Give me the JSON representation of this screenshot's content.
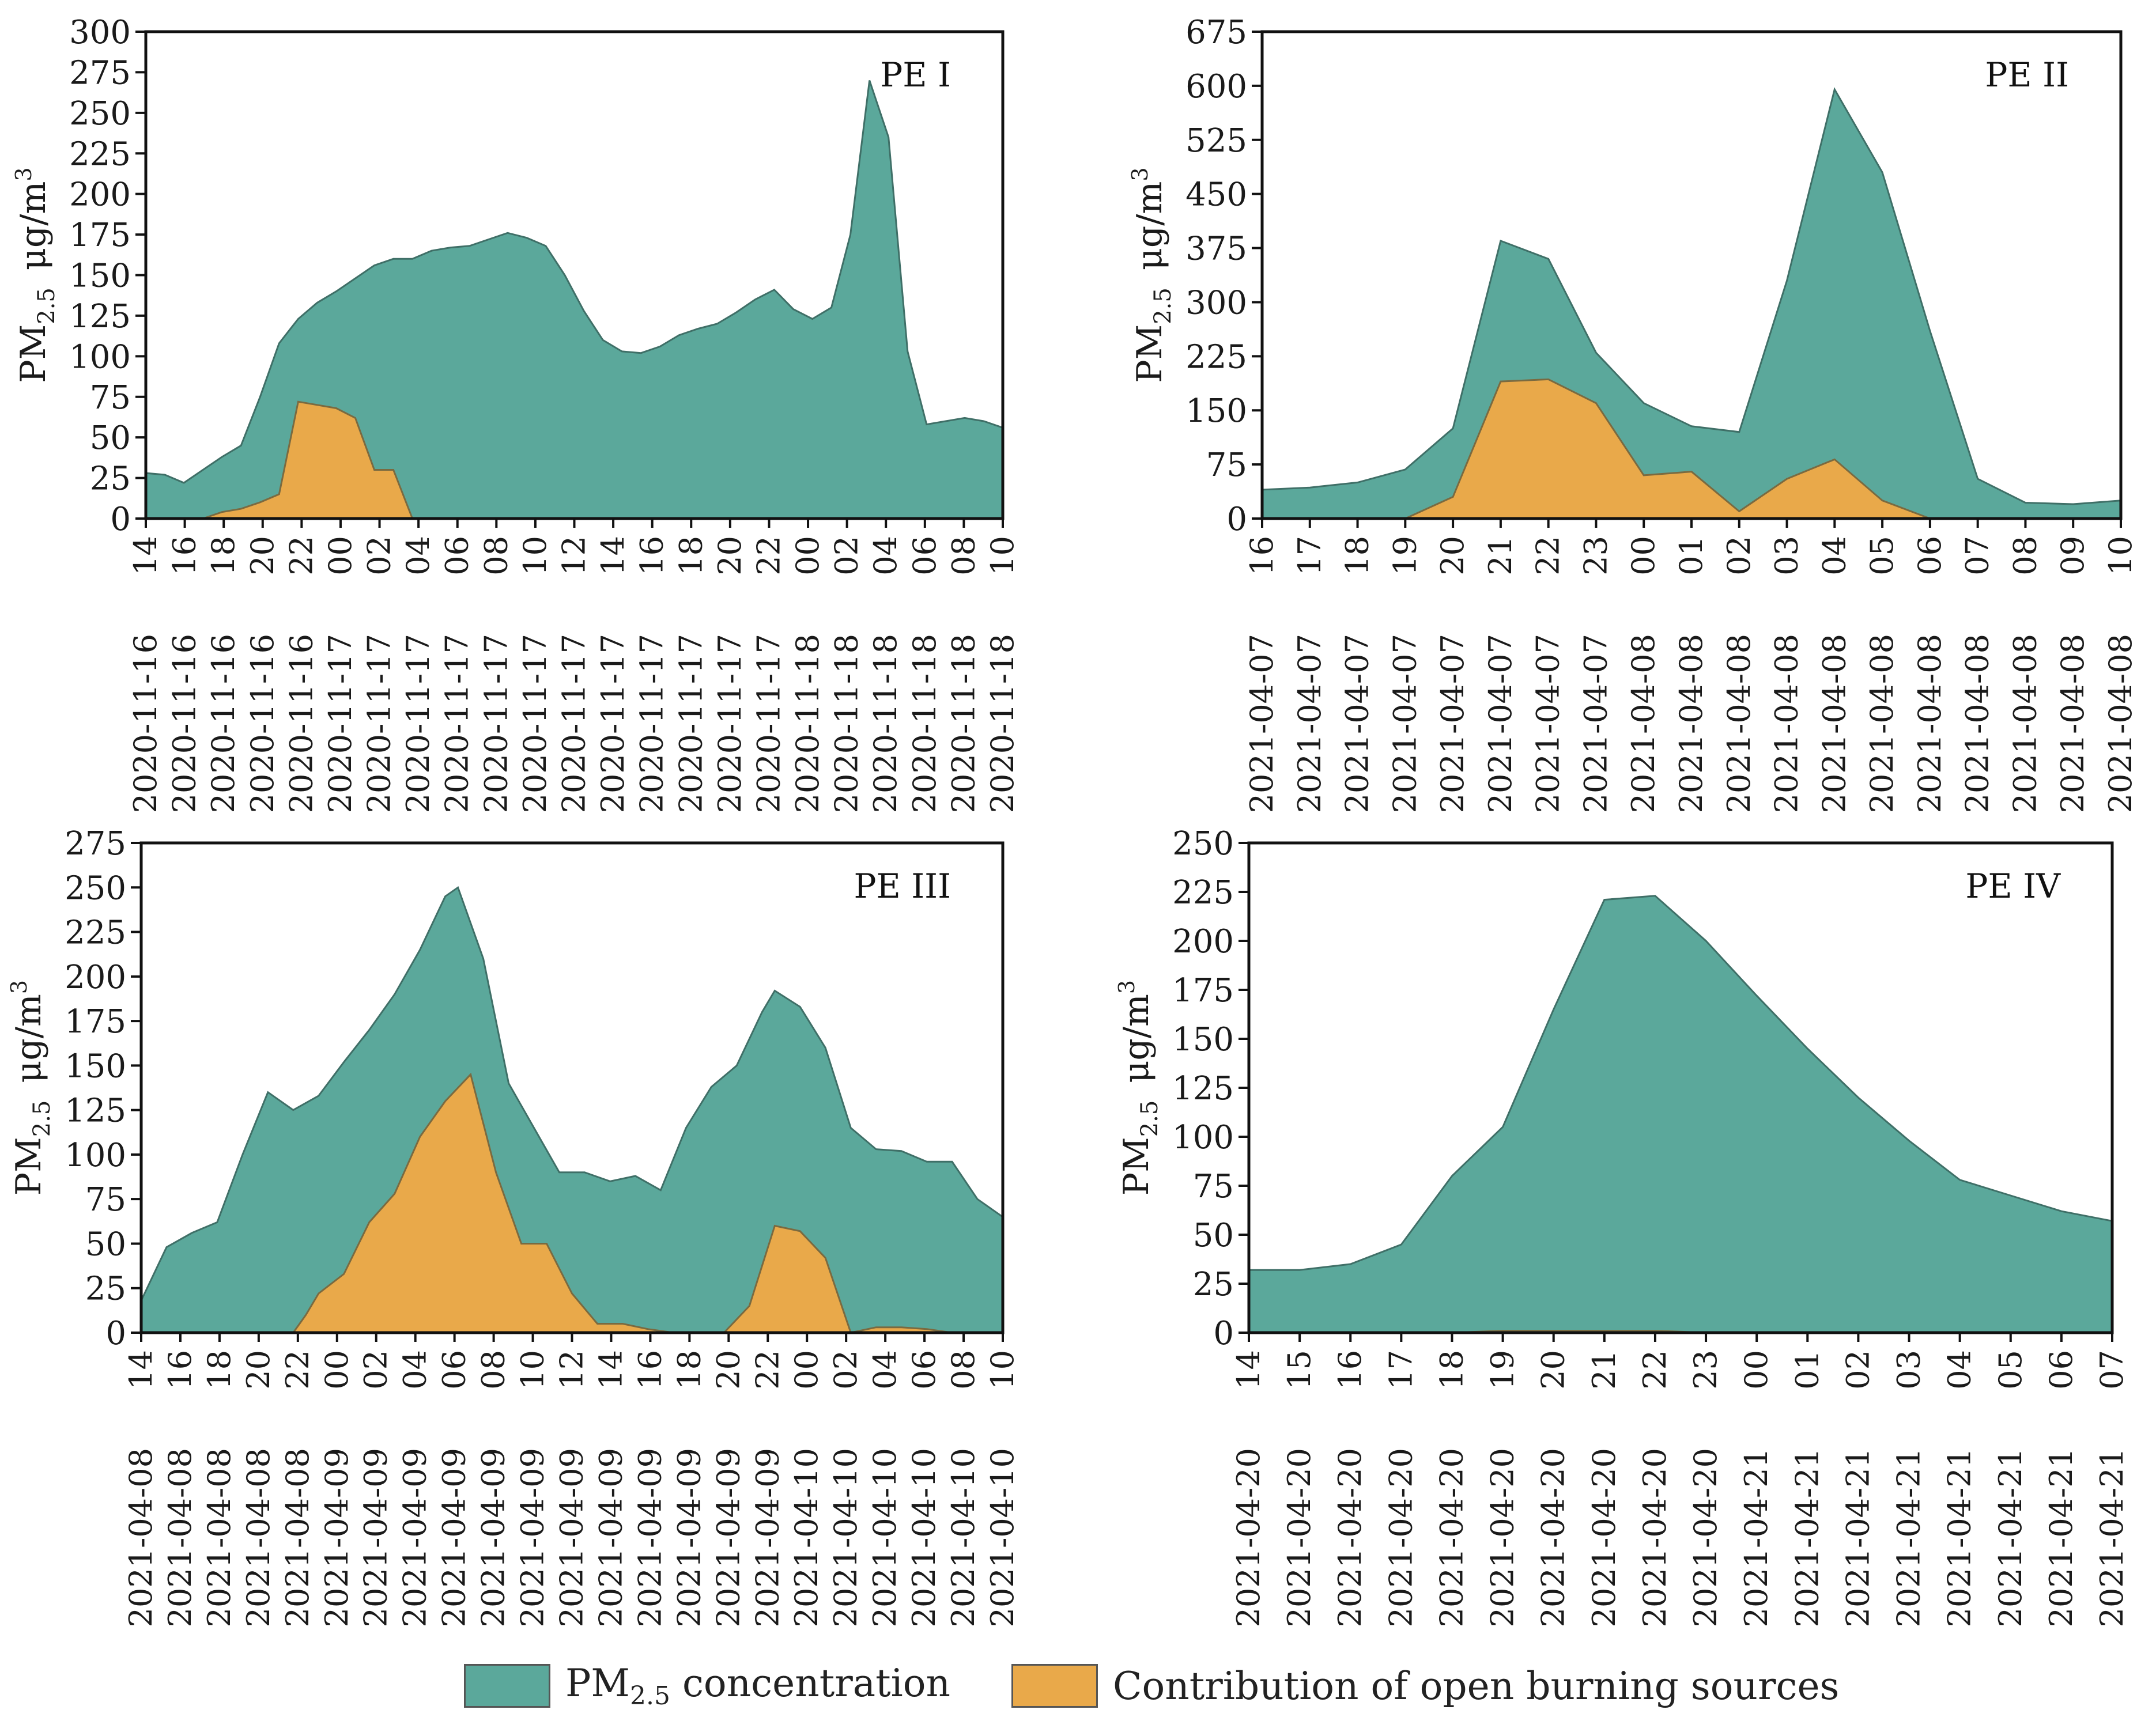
{
  "colors": {
    "pm25": "#5ba89b",
    "burning": "#e9a94a",
    "frame": "#111111",
    "outline": "#3f6f67"
  },
  "legend": {
    "pm25_main": "PM",
    "pm25_sub": "2.5",
    "pm25_rest": " concentration",
    "burning": "Contribution of open burning sources"
  },
  "charts": [
    {
      "label": "PE I",
      "ylabel_main": "PM",
      "ylabel_sub": "2.5",
      "ylabel_unit": "μg/m",
      "ylabel_sup": "3",
      "ylim": [
        0,
        300
      ],
      "yticks": [
        0,
        25,
        50,
        75,
        100,
        125,
        150,
        175,
        200,
        225,
        250,
        275,
        300
      ],
      "x_points": 57,
      "tick_hours": [
        "14",
        "16",
        "18",
        "20",
        "22",
        "00",
        "02",
        "04",
        "06",
        "08",
        "10",
        "12",
        "14",
        "16",
        "18",
        "20",
        "22",
        "00",
        "02",
        "04",
        "06",
        "08",
        "10"
      ],
      "tick_dates": [
        "2020-11-16",
        "2020-11-16",
        "2020-11-16",
        "2020-11-16",
        "2020-11-16",
        "2020-11-17",
        "2020-11-17",
        "2020-11-17",
        "2020-11-17",
        "2020-11-17",
        "2020-11-17",
        "2020-11-17",
        "2020-11-17",
        "2020-11-17",
        "2020-11-17",
        "2020-11-17",
        "2020-11-17",
        "2020-11-18",
        "2020-11-18",
        "2020-11-18",
        "2020-11-18",
        "2020-11-18",
        "2020-11-18"
      ],
      "pm25": [
        [
          0,
          28
        ],
        [
          2,
          27
        ],
        [
          4,
          22
        ],
        [
          6,
          30
        ],
        [
          8,
          38
        ],
        [
          10,
          45
        ],
        [
          12,
          75
        ],
        [
          14,
          108
        ],
        [
          16,
          123
        ],
        [
          18,
          133
        ],
        [
          20,
          140
        ],
        [
          22,
          148
        ],
        [
          24,
          156
        ],
        [
          26,
          160
        ],
        [
          28,
          160
        ],
        [
          30,
          165
        ],
        [
          32,
          167
        ],
        [
          34,
          168
        ],
        [
          36,
          172
        ],
        [
          38,
          176
        ],
        [
          40,
          173
        ],
        [
          42,
          168
        ],
        [
          44,
          150
        ],
        [
          46,
          128
        ],
        [
          48,
          110
        ],
        [
          50,
          103
        ],
        [
          52,
          102
        ],
        [
          54,
          106
        ],
        [
          56,
          113
        ],
        [
          58,
          117
        ],
        [
          60,
          120
        ],
        [
          62,
          127
        ],
        [
          64,
          135
        ],
        [
          66,
          141
        ],
        [
          68,
          129
        ],
        [
          70,
          123
        ],
        [
          72,
          130
        ],
        [
          74,
          175
        ],
        [
          76,
          270
        ],
        [
          78,
          235
        ],
        [
          80,
          103
        ],
        [
          82,
          58
        ],
        [
          84,
          60
        ],
        [
          86,
          62
        ],
        [
          88,
          60
        ],
        [
          90,
          56
        ]
      ],
      "burning": [
        [
          6,
          0
        ],
        [
          8,
          4
        ],
        [
          10,
          6
        ],
        [
          12,
          10
        ],
        [
          14,
          15
        ],
        [
          16,
          72
        ],
        [
          18,
          70
        ],
        [
          20,
          68
        ],
        [
          22,
          62
        ],
        [
          24,
          30
        ],
        [
          26,
          30
        ],
        [
          28,
          0
        ]
      ],
      "xmax": 90
    },
    {
      "label": "PE II",
      "ylabel_main": "PM",
      "ylabel_sub": "2.5",
      "ylabel_unit": "μg/m",
      "ylabel_sup": "3",
      "ylim": [
        0,
        675
      ],
      "yticks": [
        0,
        75,
        150,
        225,
        300,
        375,
        450,
        525,
        600,
        675
      ],
      "tick_hours": [
        "16",
        "17",
        "18",
        "19",
        "20",
        "21",
        "22",
        "23",
        "00",
        "01",
        "02",
        "03",
        "04",
        "05",
        "06",
        "07",
        "08",
        "09",
        "10"
      ],
      "tick_dates": [
        "2021-04-07",
        "2021-04-07",
        "2021-04-07",
        "2021-04-07",
        "2021-04-07",
        "2021-04-07",
        "2021-04-07",
        "2021-04-07",
        "2021-04-08",
        "2021-04-08",
        "2021-04-08",
        "2021-04-08",
        "2021-04-08",
        "2021-04-08",
        "2021-04-08",
        "2021-04-08",
        "2021-04-08",
        "2021-04-08",
        "2021-04-08"
      ],
      "pm25": [
        [
          0,
          40
        ],
        [
          1,
          43
        ],
        [
          2,
          50
        ],
        [
          3,
          68
        ],
        [
          4,
          125
        ],
        [
          5,
          385
        ],
        [
          6,
          360
        ],
        [
          7,
          230
        ],
        [
          8,
          160
        ],
        [
          9,
          128
        ],
        [
          10,
          120
        ],
        [
          11,
          330
        ],
        [
          12,
          595
        ],
        [
          13,
          480
        ],
        [
          14,
          260
        ],
        [
          15,
          55
        ],
        [
          16,
          22
        ],
        [
          17,
          20
        ],
        [
          18,
          25
        ]
      ],
      "burning": [
        [
          3,
          0
        ],
        [
          4,
          30
        ],
        [
          5,
          190
        ],
        [
          6,
          193
        ],
        [
          7,
          160
        ],
        [
          8,
          60
        ],
        [
          9,
          65
        ],
        [
          10,
          10
        ],
        [
          11,
          55
        ],
        [
          12,
          82
        ],
        [
          13,
          25
        ],
        [
          14,
          0
        ]
      ],
      "xmax": 18
    },
    {
      "label": "PE III",
      "ylabel_main": "PM",
      "ylabel_sub": "2.5",
      "ylabel_unit": "μg/m",
      "ylabel_sup": "3",
      "ylim": [
        0,
        275
      ],
      "yticks": [
        0,
        25,
        50,
        75,
        100,
        125,
        150,
        175,
        200,
        225,
        250,
        275
      ],
      "tick_hours": [
        "14",
        "16",
        "18",
        "20",
        "22",
        "00",
        "02",
        "04",
        "06",
        "08",
        "10",
        "12",
        "14",
        "16",
        "18",
        "20",
        "22",
        "00",
        "02",
        "04",
        "06",
        "08",
        "10"
      ],
      "tick_dates": [
        "2021-04-08",
        "2021-04-08",
        "2021-04-08",
        "2021-04-08",
        "2021-04-08",
        "2021-04-09",
        "2021-04-09",
        "2021-04-09",
        "2021-04-09",
        "2021-04-09",
        "2021-04-09",
        "2021-04-09",
        "2021-04-09",
        "2021-04-09",
        "2021-04-09",
        "2021-04-09",
        "2021-04-09",
        "2021-04-10",
        "2021-04-10",
        "2021-04-10",
        "2021-04-10",
        "2021-04-10",
        "2021-04-10"
      ],
      "pm25": [
        [
          0,
          18
        ],
        [
          2,
          48
        ],
        [
          4,
          56
        ],
        [
          6,
          62
        ],
        [
          8,
          100
        ],
        [
          10,
          135
        ],
        [
          12,
          125
        ],
        [
          14,
          133
        ],
        [
          16,
          152
        ],
        [
          18,
          170
        ],
        [
          20,
          190
        ],
        [
          22,
          215
        ],
        [
          24,
          245
        ],
        [
          25,
          250
        ],
        [
          27,
          210
        ],
        [
          29,
          140
        ],
        [
          31,
          115
        ],
        [
          33,
          90
        ],
        [
          35,
          90
        ],
        [
          37,
          85
        ],
        [
          39,
          88
        ],
        [
          41,
          80
        ],
        [
          43,
          115
        ],
        [
          45,
          138
        ],
        [
          47,
          150
        ],
        [
          49,
          180
        ],
        [
          50,
          192
        ],
        [
          52,
          183
        ],
        [
          54,
          160
        ],
        [
          56,
          115
        ],
        [
          58,
          103
        ],
        [
          60,
          102
        ],
        [
          62,
          96
        ],
        [
          64,
          96
        ],
        [
          66,
          75
        ],
        [
          68,
          65
        ]
      ],
      "burning": [
        [
          12,
          0
        ],
        [
          13,
          10
        ],
        [
          14,
          22
        ],
        [
          16,
          33
        ],
        [
          18,
          62
        ],
        [
          20,
          78
        ],
        [
          22,
          110
        ],
        [
          24,
          130
        ],
        [
          26,
          145
        ],
        [
          28,
          90
        ],
        [
          30,
          50
        ],
        [
          32,
          50
        ],
        [
          34,
          22
        ],
        [
          36,
          5
        ],
        [
          38,
          5
        ],
        [
          40,
          2
        ],
        [
          42,
          0
        ],
        [
          46,
          0
        ],
        [
          48,
          15
        ],
        [
          50,
          60
        ],
        [
          52,
          57
        ],
        [
          54,
          42
        ],
        [
          56,
          0
        ],
        [
          58,
          3
        ],
        [
          60,
          3
        ],
        [
          62,
          2
        ],
        [
          64,
          0
        ]
      ],
      "xmax": 68
    },
    {
      "label": "PE IV",
      "ylabel_main": "PM",
      "ylabel_sub": "2.5",
      "ylabel_unit": "μg/m",
      "ylabel_sup": "3",
      "ylim": [
        0,
        250
      ],
      "yticks": [
        0,
        25,
        50,
        75,
        100,
        125,
        150,
        175,
        200,
        225,
        250
      ],
      "tick_hours": [
        "14",
        "15",
        "16",
        "17",
        "18",
        "19",
        "20",
        "21",
        "22",
        "23",
        "00",
        "01",
        "02",
        "03",
        "04",
        "05",
        "06",
        "07"
      ],
      "tick_dates": [
        "2021-04-20",
        "2021-04-20",
        "2021-04-20",
        "2021-04-20",
        "2021-04-20",
        "2021-04-20",
        "2021-04-20",
        "2021-04-20",
        "2021-04-20",
        "2021-04-20",
        "2021-04-21",
        "2021-04-21",
        "2021-04-21",
        "2021-04-21",
        "2021-04-21",
        "2021-04-21",
        "2021-04-21",
        "2021-04-21"
      ],
      "pm25": [
        [
          0,
          32
        ],
        [
          1,
          32
        ],
        [
          2,
          35
        ],
        [
          3,
          45
        ],
        [
          4,
          80
        ],
        [
          5,
          105
        ],
        [
          6,
          165
        ],
        [
          7,
          221
        ],
        [
          8,
          223
        ],
        [
          9,
          200
        ],
        [
          10,
          172
        ],
        [
          11,
          145
        ],
        [
          12,
          120
        ],
        [
          13,
          98
        ],
        [
          14,
          78
        ],
        [
          15,
          70
        ],
        [
          16,
          62
        ],
        [
          17,
          57
        ]
      ],
      "burning": [
        [
          4,
          0
        ],
        [
          5,
          1
        ],
        [
          8,
          1
        ],
        [
          9,
          0
        ]
      ],
      "xmax": 17
    }
  ]
}
